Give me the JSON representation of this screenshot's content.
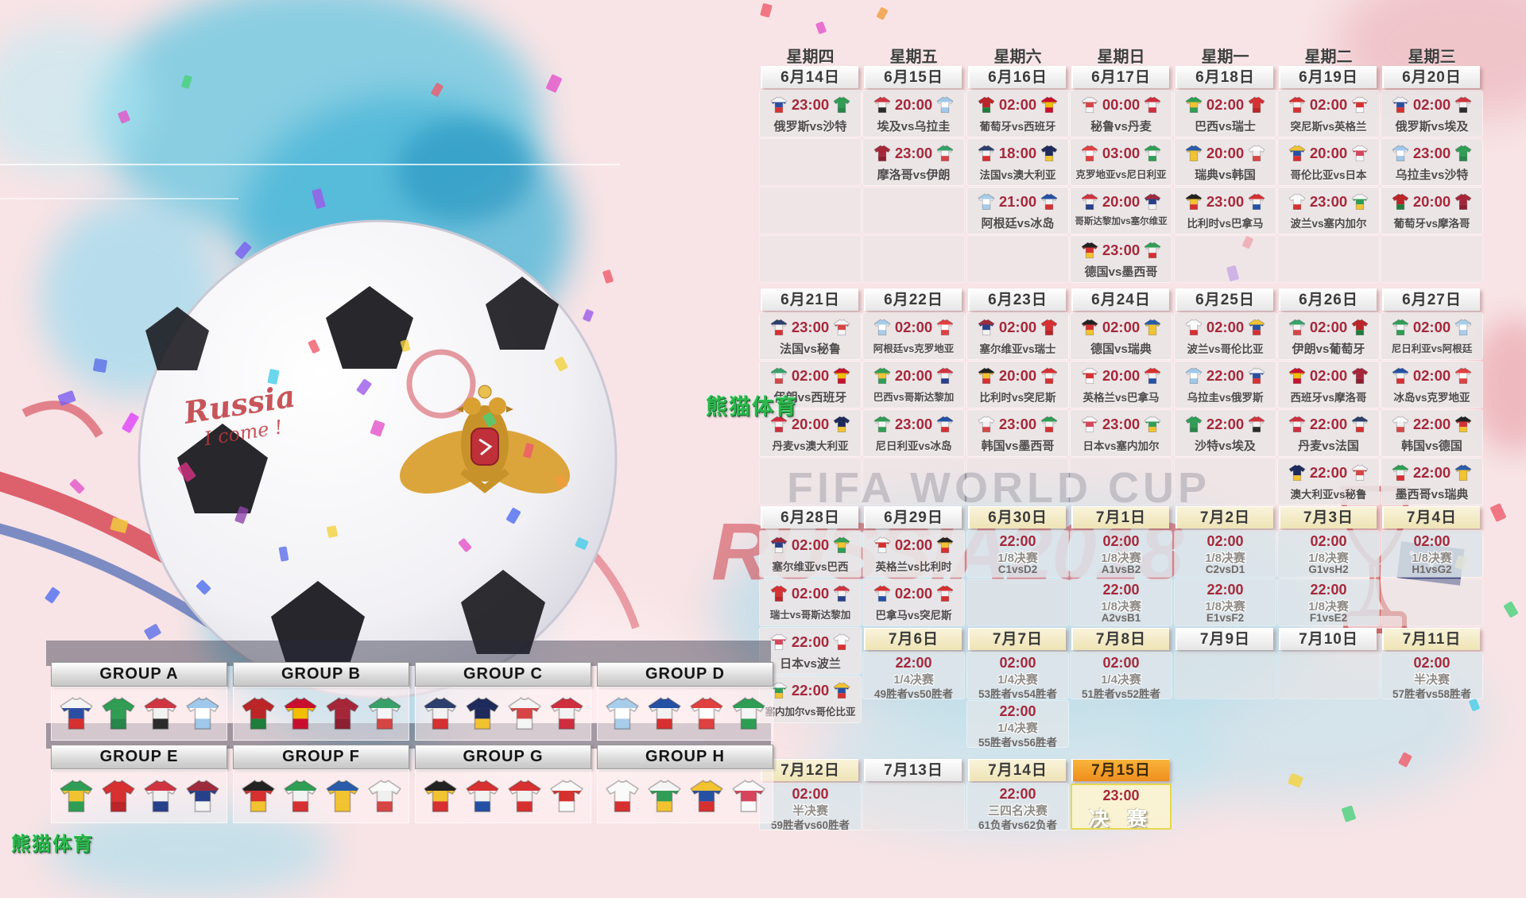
{
  "watermarks": {
    "panda": "熊猫体育",
    "fifa": "FIFA WORLD CUP",
    "russia": "RUSSIA2018",
    "ball_line1": "Russia",
    "ball_line2": "I come !"
  },
  "colors": {
    "time_red": "#a5293b",
    "header_orange": "#ee8e20",
    "final_border_yellow": "#e6d84e",
    "panda_green": "#2db84d",
    "russia_red": "#cd2f39"
  },
  "team_colors": {
    "俄罗斯": [
      "#f4f4f4",
      "#2b4ea2",
      "#d63031"
    ],
    "沙特": [
      "#2f9e54",
      "#2f9e54",
      "#27864a"
    ],
    "埃及": [
      "#cf3540",
      "#f2f2f2",
      "#2b2b2b"
    ],
    "乌拉圭": [
      "#9fc8ea",
      "#ffffff",
      "#9fc8ea"
    ],
    "摩洛哥": [
      "#a62639",
      "#a62639",
      "#8c1f30"
    ],
    "伊朗": [
      "#38a169",
      "#f5f5f5",
      "#d64545"
    ],
    "葡萄牙": [
      "#bb2528",
      "#bb2528",
      "#1e7d3a"
    ],
    "西班牙": [
      "#c8102e",
      "#f1bf00",
      "#c8102e"
    ],
    "法国": [
      "#2c3e6b",
      "#f2f2f2",
      "#d63031"
    ],
    "澳大利亚": [
      "#1d2a5b",
      "#1d2a5b",
      "#f2c330"
    ],
    "阿根廷": [
      "#a8cdea",
      "#ffffff",
      "#a8cdea"
    ],
    "冰岛": [
      "#2451a4",
      "#f2f2f2",
      "#d63031"
    ],
    "秘鲁": [
      "#f5f5f5",
      "#d64545",
      "#f5f5f5"
    ],
    "丹麦": [
      "#cf2e3e",
      "#f2f2f2",
      "#cf2e3e"
    ],
    "克罗地亚": [
      "#df4040",
      "#ffffff",
      "#df4040"
    ],
    "尼日利亚": [
      "#2f9e54",
      "#f5f5f5",
      "#2f9e54"
    ],
    "哥斯达黎加": [
      "#cf3540",
      "#f2f2f2",
      "#27408b"
    ],
    "塞尔维亚": [
      "#9e2b3c",
      "#27408b",
      "#f2f2f2"
    ],
    "巴西": [
      "#2f9e54",
      "#f2c330",
      "#2f9e54"
    ],
    "瑞士": [
      "#d63031",
      "#d63031",
      "#bb2528"
    ],
    "瑞典": [
      "#2a5caa",
      "#f2c330",
      "#f2c330"
    ],
    "韩国": [
      "#fafafa",
      "#f0f0f0",
      "#d64545"
    ],
    "德国": [
      "#222222",
      "#d63031",
      "#f2c330"
    ],
    "墨西哥": [
      "#2f9e54",
      "#f2f2f2",
      "#d63031"
    ],
    "比利时": [
      "#222222",
      "#f2c330",
      "#d63031"
    ],
    "巴拿马": [
      "#d63031",
      "#f2f2f2",
      "#2451a4"
    ],
    "突尼斯": [
      "#d63031",
      "#f2f2f2",
      "#d63031"
    ],
    "英格兰": [
      "#fafafa",
      "#d63031",
      "#fafafa"
    ],
    "波兰": [
      "#fafafa",
      "#fafafa",
      "#d63031"
    ],
    "塞内加尔": [
      "#f5f5f5",
      "#2f9e54",
      "#f2c330"
    ],
    "哥伦比亚": [
      "#f2c330",
      "#2451a4",
      "#d63031"
    ],
    "日本": [
      "#fafafa",
      "#d6455b",
      "#fafafa"
    ]
  },
  "schedule": {
    "columns": [
      {
        "weekday": "星期四",
        "sections": [
          {
            "week": 1,
            "date": "6月14日",
            "style": "white",
            "cells": [
              {
                "t": "m",
                "time": "23:00",
                "home": "俄罗斯",
                "away": "沙特"
              },
              {
                "t": "e"
              },
              {
                "t": "e"
              },
              {
                "t": "e"
              }
            ]
          },
          {
            "week": 2,
            "date": "6月21日",
            "style": "white",
            "cells": [
              {
                "t": "m",
                "time": "23:00",
                "home": "法国",
                "away": "秘鲁"
              },
              {
                "t": "m",
                "time": "02:00",
                "home": "伊朗",
                "away": "西班牙"
              },
              {
                "t": "m",
                "time": "20:00",
                "home": "丹麦",
                "away": "澳大利亚"
              },
              {
                "t": "e"
              }
            ]
          },
          {
            "week": 3,
            "date": "6月28日",
            "style": "white",
            "cells": [
              {
                "t": "m",
                "time": "02:00",
                "home": "塞尔维亚",
                "away": "巴西"
              },
              {
                "t": "m",
                "time": "02:00",
                "home": "瑞士",
                "away": "哥斯达黎加"
              },
              {
                "t": "m",
                "time": "22:00",
                "home": "日本",
                "away": "波兰"
              },
              {
                "t": "m",
                "time": "22:00",
                "home": "塞内加尔",
                "away": "哥伦比亚"
              }
            ]
          },
          {
            "week": 5,
            "date": "7月12日",
            "style": "cream",
            "cells": [
              {
                "t": "k",
                "time": "02:00",
                "stage": "半决赛",
                "pair": "59胜者vs60胜者"
              }
            ]
          }
        ]
      },
      {
        "weekday": "星期五",
        "sections": [
          {
            "week": 1,
            "date": "6月15日",
            "style": "white",
            "cells": [
              {
                "t": "m",
                "time": "20:00",
                "home": "埃及",
                "away": "乌拉圭"
              },
              {
                "t": "m",
                "time": "23:00",
                "home": "摩洛哥",
                "away": "伊朗"
              },
              {
                "t": "e"
              },
              {
                "t": "e"
              }
            ]
          },
          {
            "week": 2,
            "date": "6月22日",
            "style": "white",
            "cells": [
              {
                "t": "m",
                "time": "02:00",
                "home": "阿根廷",
                "away": "克罗地亚"
              },
              {
                "t": "m",
                "time": "20:00",
                "home": "巴西",
                "away": "哥斯达黎加"
              },
              {
                "t": "m",
                "time": "23:00",
                "home": "尼日利亚",
                "away": "冰岛"
              },
              {
                "t": "e"
              }
            ]
          },
          {
            "week": 3,
            "date": "6月29日",
            "style": "white",
            "cells": [
              {
                "t": "m",
                "time": "02:00",
                "home": "英格兰",
                "away": "比利时"
              },
              {
                "t": "m",
                "time": "02:00",
                "home": "巴拿马",
                "away": "突尼斯"
              }
            ]
          },
          {
            "week": 4,
            "date": "7月6日",
            "style": "cream",
            "cells": [
              {
                "t": "k",
                "time": "22:00",
                "stage": "1/4决赛",
                "pair": "49胜者vs50胜者"
              }
            ]
          },
          {
            "week": 5,
            "date": "7月13日",
            "style": "white",
            "cells": [
              {
                "t": "e"
              }
            ]
          }
        ]
      },
      {
        "weekday": "星期六",
        "sections": [
          {
            "week": 1,
            "date": "6月16日",
            "style": "white",
            "cells": [
              {
                "t": "m",
                "time": "02:00",
                "home": "葡萄牙",
                "away": "西班牙"
              },
              {
                "t": "m",
                "time": "18:00",
                "home": "法国",
                "away": "澳大利亚"
              },
              {
                "t": "m",
                "time": "21:00",
                "home": "阿根廷",
                "away": "冰岛"
              },
              {
                "t": "e"
              }
            ]
          },
          {
            "week": 2,
            "date": "6月23日",
            "style": "white",
            "cells": [
              {
                "t": "m",
                "time": "02:00",
                "home": "塞尔维亚",
                "away": "瑞士"
              },
              {
                "t": "m",
                "time": "20:00",
                "home": "比利时",
                "away": "突尼斯"
              },
              {
                "t": "m",
                "time": "23:00",
                "home": "韩国",
                "away": "墨西哥"
              },
              {
                "t": "e"
              }
            ]
          },
          {
            "week": 3,
            "date": "6月30日",
            "style": "cream",
            "cells": [
              {
                "t": "k",
                "time": "22:00",
                "stage": "1/8决赛",
                "pair": "C1vsD2"
              },
              {
                "t": "e"
              }
            ]
          },
          {
            "week": 4,
            "date": "7月7日",
            "style": "cream",
            "cells": [
              {
                "t": "k",
                "time": "02:00",
                "stage": "1/4决赛",
                "pair": "53胜者vs54胜者"
              },
              {
                "t": "k",
                "time": "22:00",
                "stage": "1/4决赛",
                "pair": "55胜者vs56胜者"
              }
            ]
          },
          {
            "week": 5,
            "date": "7月14日",
            "style": "cream",
            "cells": [
              {
                "t": "k",
                "time": "22:00",
                "stage": "三四名决赛",
                "pair": "61负者vs62负者"
              }
            ]
          }
        ]
      },
      {
        "weekday": "星期日",
        "sections": [
          {
            "week": 1,
            "date": "6月17日",
            "style": "white",
            "cells": [
              {
                "t": "m",
                "time": "00:00",
                "home": "秘鲁",
                "away": "丹麦"
              },
              {
                "t": "m",
                "time": "03:00",
                "home": "克罗地亚",
                "away": "尼日利亚"
              },
              {
                "t": "m",
                "time": "20:00",
                "home": "哥斯达黎加",
                "away": "塞尔维亚"
              },
              {
                "t": "m",
                "time": "23:00",
                "home": "德国",
                "away": "墨西哥"
              }
            ]
          },
          {
            "week": 2,
            "date": "6月24日",
            "style": "white",
            "cells": [
              {
                "t": "m",
                "time": "02:00",
                "home": "德国",
                "away": "瑞典"
              },
              {
                "t": "m",
                "time": "20:00",
                "home": "英格兰",
                "away": "巴拿马"
              },
              {
                "t": "m",
                "time": "23:00",
                "home": "日本",
                "away": "塞内加尔"
              },
              {
                "t": "e"
              }
            ]
          },
          {
            "week": 3,
            "date": "7月1日",
            "style": "cream",
            "cells": [
              {
                "t": "k",
                "time": "02:00",
                "stage": "1/8决赛",
                "pair": "A1vsB2"
              },
              {
                "t": "k",
                "time": "22:00",
                "stage": "1/8决赛",
                "pair": "A2vsB1"
              }
            ]
          },
          {
            "week": 4,
            "date": "7月8日",
            "style": "cream",
            "cells": [
              {
                "t": "k",
                "time": "02:00",
                "stage": "1/4决赛",
                "pair": "51胜者vs52胜者"
              }
            ]
          },
          {
            "week": 5,
            "date": "7月15日",
            "style": "orange",
            "cells": [
              {
                "t": "f",
                "time": "23:00",
                "label": "决 赛"
              }
            ]
          }
        ]
      },
      {
        "weekday": "星期一",
        "sections": [
          {
            "week": 1,
            "date": "6月18日",
            "style": "white",
            "cells": [
              {
                "t": "m",
                "time": "02:00",
                "home": "巴西",
                "away": "瑞士"
              },
              {
                "t": "m",
                "time": "20:00",
                "home": "瑞典",
                "away": "韩国"
              },
              {
                "t": "m",
                "time": "23:00",
                "home": "比利时",
                "away": "巴拿马"
              },
              {
                "t": "e"
              }
            ]
          },
          {
            "week": 2,
            "date": "6月25日",
            "style": "white",
            "cells": [
              {
                "t": "m",
                "time": "02:00",
                "home": "波兰",
                "away": "哥伦比亚"
              },
              {
                "t": "m",
                "time": "22:00",
                "home": "乌拉圭",
                "away": "俄罗斯"
              },
              {
                "t": "m",
                "time": "22:00",
                "home": "沙特",
                "away": "埃及"
              },
              {
                "t": "e"
              }
            ]
          },
          {
            "week": 3,
            "date": "7月2日",
            "style": "cream",
            "cells": [
              {
                "t": "k",
                "time": "02:00",
                "stage": "1/8决赛",
                "pair": "C2vsD1"
              },
              {
                "t": "k",
                "time": "22:00",
                "stage": "1/8决赛",
                "pair": "E1vsF2"
              }
            ]
          },
          {
            "week": 4,
            "date": "7月9日",
            "style": "white",
            "cells": [
              {
                "t": "e"
              }
            ]
          }
        ]
      },
      {
        "weekday": "星期二",
        "sections": [
          {
            "week": 1,
            "date": "6月19日",
            "style": "white",
            "cells": [
              {
                "t": "m",
                "time": "02:00",
                "home": "突尼斯",
                "away": "英格兰"
              },
              {
                "t": "m",
                "time": "20:00",
                "home": "哥伦比亚",
                "away": "日本"
              },
              {
                "t": "m",
                "time": "23:00",
                "home": "波兰",
                "away": "塞内加尔"
              },
              {
                "t": "e"
              }
            ]
          },
          {
            "week": 2,
            "date": "6月26日",
            "style": "white",
            "cells": [
              {
                "t": "m",
                "time": "02:00",
                "home": "伊朗",
                "away": "葡萄牙"
              },
              {
                "t": "m",
                "time": "02:00",
                "home": "西班牙",
                "away": "摩洛哥"
              },
              {
                "t": "m",
                "time": "22:00",
                "home": "丹麦",
                "away": "法国"
              },
              {
                "t": "m",
                "time": "22:00",
                "home": "澳大利亚",
                "away": "秘鲁"
              }
            ]
          },
          {
            "week": 3,
            "date": "7月3日",
            "style": "cream",
            "cells": [
              {
                "t": "k",
                "time": "02:00",
                "stage": "1/8决赛",
                "pair": "G1vsH2"
              },
              {
                "t": "k",
                "time": "22:00",
                "stage": "1/8决赛",
                "pair": "F1vsE2"
              }
            ]
          },
          {
            "week": 4,
            "date": "7月10日",
            "style": "white",
            "cells": [
              {
                "t": "e"
              }
            ]
          }
        ]
      },
      {
        "weekday": "星期三",
        "sections": [
          {
            "week": 1,
            "date": "6月20日",
            "style": "white",
            "cells": [
              {
                "t": "m",
                "time": "02:00",
                "home": "俄罗斯",
                "away": "埃及"
              },
              {
                "t": "m",
                "time": "23:00",
                "home": "乌拉圭",
                "away": "沙特"
              },
              {
                "t": "m",
                "time": "20:00",
                "home": "葡萄牙",
                "away": "摩洛哥"
              },
              {
                "t": "e"
              }
            ]
          },
          {
            "week": 2,
            "date": "6月27日",
            "style": "white",
            "cells": [
              {
                "t": "m",
                "time": "02:00",
                "home": "尼日利亚",
                "away": "阿根廷"
              },
              {
                "t": "m",
                "time": "02:00",
                "home": "冰岛",
                "away": "克罗地亚"
              },
              {
                "t": "m",
                "time": "22:00",
                "home": "韩国",
                "away": "德国"
              },
              {
                "t": "m",
                "time": "22:00",
                "home": "墨西哥",
                "away": "瑞典"
              }
            ]
          },
          {
            "week": 3,
            "date": "7月4日",
            "style": "cream",
            "cells": [
              {
                "t": "k",
                "time": "02:00",
                "stage": "1/8决赛",
                "pair": "H1vsG2"
              },
              {
                "t": "e"
              }
            ]
          },
          {
            "week": 4,
            "date": "7月11日",
            "style": "cream",
            "cells": [
              {
                "t": "k",
                "time": "02:00",
                "stage": "半决赛",
                "pair": "57胜者vs58胜者"
              }
            ]
          }
        ]
      }
    ]
  },
  "groups": [
    {
      "label": "GROUP A",
      "teams": [
        "俄罗斯",
        "沙特",
        "埃及",
        "乌拉圭"
      ]
    },
    {
      "label": "GROUP B",
      "teams": [
        "葡萄牙",
        "西班牙",
        "摩洛哥",
        "伊朗"
      ]
    },
    {
      "label": "GROUP C",
      "teams": [
        "法国",
        "澳大利亚",
        "秘鲁",
        "丹麦"
      ]
    },
    {
      "label": "GROUP D",
      "teams": [
        "阿根廷",
        "冰岛",
        "克罗地亚",
        "尼日利亚"
      ]
    },
    {
      "label": "GROUP E",
      "teams": [
        "巴西",
        "瑞士",
        "哥斯达黎加",
        "塞尔维亚"
      ]
    },
    {
      "label": "GROUP F",
      "teams": [
        "德国",
        "墨西哥",
        "瑞典",
        "韩国"
      ]
    },
    {
      "label": "GROUP G",
      "teams": [
        "比利时",
        "巴拿马",
        "突尼斯",
        "英格兰"
      ]
    },
    {
      "label": "GROUP H",
      "teams": [
        "波兰",
        "塞内加尔",
        "哥伦比亚",
        "日本"
      ]
    }
  ]
}
